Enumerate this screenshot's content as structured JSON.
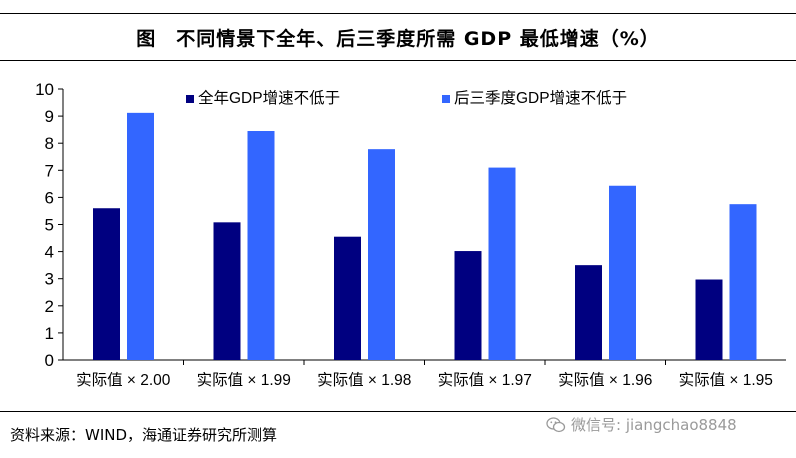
{
  "figure": {
    "title": "图　不同情景下全年、后三季度所需 GDP 最低增速（%）",
    "source": "资料来源：WIND，海通证券研究所测算",
    "watermark": "微信号: jiangchao8848"
  },
  "chart_data": {
    "type": "bar",
    "title": "图　不同情景下全年、后三季度所需 GDP 最低增速（%）",
    "categories": [
      "实际值 × 2.00",
      "实际值 × 1.99",
      "实际值 × 1.98",
      "实际值 × 1.97",
      "实际值 × 1.96",
      "实际值 × 1.95"
    ],
    "series": [
      {
        "name": "全年GDP增速不低于",
        "values": [
          5.6,
          5.08,
          4.55,
          4.02,
          3.5,
          2.97
        ],
        "color": "#000080"
      },
      {
        "name": "后三季度GDP增速不低于",
        "values": [
          9.12,
          8.45,
          7.78,
          7.1,
          6.43,
          5.75
        ],
        "color": "#3366ff"
      }
    ],
    "yticks": [
      0,
      1,
      2,
      3,
      4,
      5,
      6,
      7,
      8,
      9,
      10
    ],
    "ylim": [
      0,
      10
    ],
    "xlabel": "",
    "ylabel": "",
    "grid": false,
    "legend_position": "top-right"
  }
}
